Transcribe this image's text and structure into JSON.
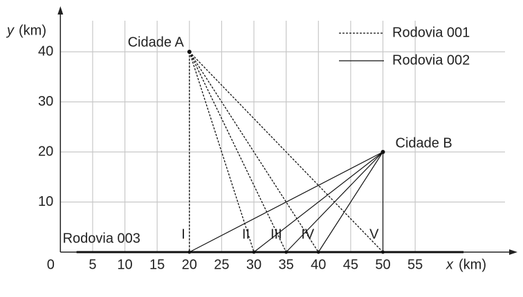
{
  "chart_data": {
    "type": "route-map",
    "x_label_var": "x",
    "x_label_unit": "(km)",
    "y_label_var": "y",
    "y_label_unit": "(km)",
    "xlim": [
      0,
      70
    ],
    "ylim": [
      0,
      48
    ],
    "xticks": [
      0,
      5,
      10,
      15,
      20,
      25,
      30,
      35,
      40,
      45,
      50,
      55
    ],
    "yticks": [
      10,
      20,
      30,
      40
    ],
    "grid": true,
    "legend": "upper right",
    "cities": [
      {
        "name": "Cidade A",
        "x": 20,
        "y": 40
      },
      {
        "name": "Cidade B",
        "x": 50,
        "y": 20
      }
    ],
    "junctions": [
      {
        "label": "I",
        "x": 20
      },
      {
        "label": "II",
        "x": 30
      },
      {
        "label": "III",
        "x": 35
      },
      {
        "label": "IV",
        "x": 40
      },
      {
        "label": "V",
        "x": 50
      }
    ],
    "roads": [
      {
        "name": "Rodovia 001",
        "style": "dashed",
        "from_city": 0
      },
      {
        "name": "Rodovia 002",
        "style": "solid",
        "from_city": 1
      }
    ],
    "base_road": {
      "name": "Rodovia 003",
      "x": [
        2.5,
        62.5
      ]
    }
  }
}
